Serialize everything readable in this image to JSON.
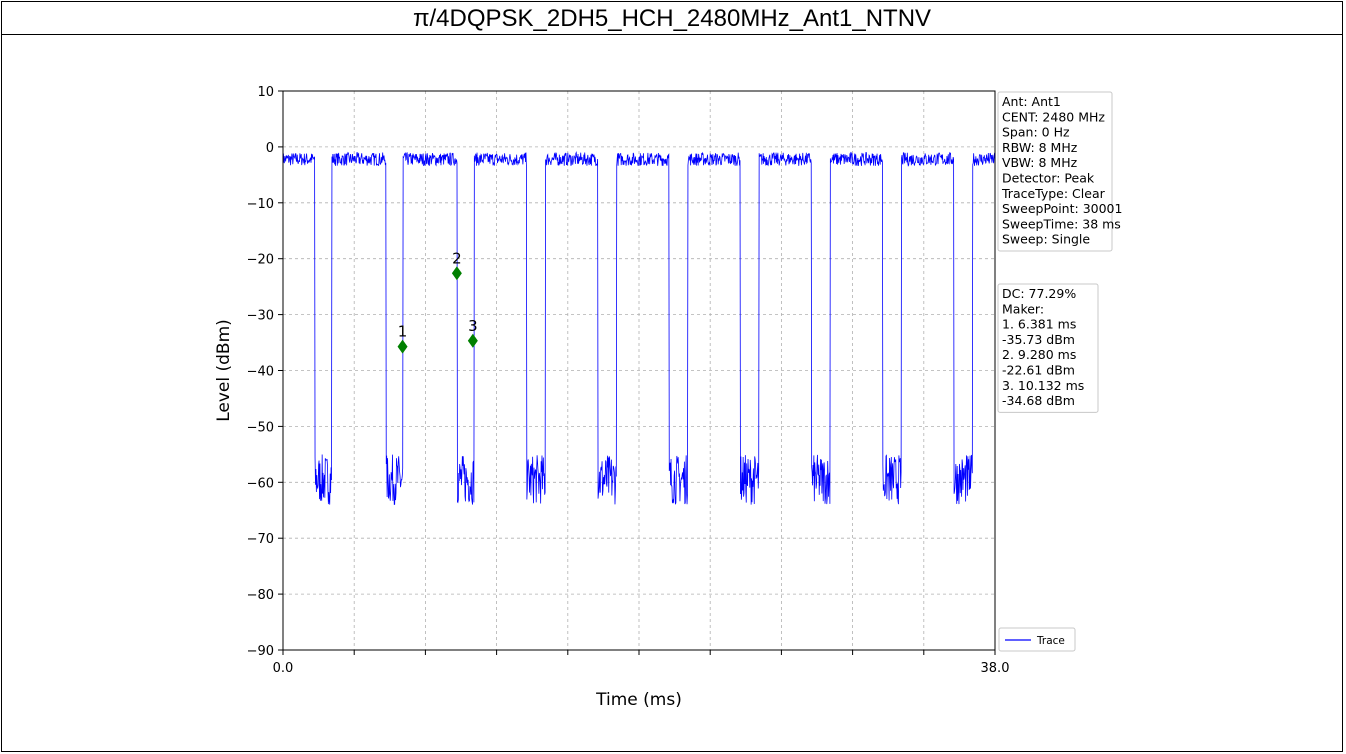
{
  "page": {
    "title": "π/4DQPSK_2DH5_HCH_2480MHz_Ant1_NTNV"
  },
  "chart_data": {
    "type": "line",
    "title": "",
    "xlabel": "Time (ms)",
    "ylabel": "Level (dBm)",
    "xlim": [
      0.0,
      38.0
    ],
    "ylim": [
      -90,
      10
    ],
    "x_tick_labels": [
      "0.0",
      "38.0"
    ],
    "x_minor_ticks": [
      3.8,
      7.6,
      11.4,
      15.2,
      19.0,
      22.8,
      26.6,
      30.4,
      34.2
    ],
    "y_ticks": [
      10,
      0,
      -10,
      -20,
      -30,
      -40,
      -50,
      -60,
      -70,
      -80,
      -90
    ],
    "y_tick_labels": [
      "10",
      "0",
      "−10",
      "−20",
      "−30",
      "−40",
      "−50",
      "−60",
      "−70",
      "−80",
      "−90"
    ],
    "grid": true,
    "legend_position": "bottom-right",
    "series": [
      {
        "name": "Trace",
        "color": "#0000ff",
        "pattern": {
          "high_level_dBm": -2.2,
          "low_level_dBm": -59.5,
          "high_segments_ms": [
            [
              0.0,
              1.7
            ],
            [
              2.6,
              5.5
            ],
            [
              6.4,
              9.3
            ],
            [
              10.2,
              13.0
            ],
            [
              14.0,
              16.8
            ],
            [
              17.8,
              20.6
            ],
            [
              21.6,
              24.4
            ],
            [
              25.4,
              28.2
            ],
            [
              29.2,
              32.0
            ],
            [
              33.0,
              35.8
            ],
            [
              36.8,
              38.0
            ]
          ]
        }
      }
    ],
    "markers": [
      {
        "label": "1",
        "x": 6.381,
        "y": -35.73
      },
      {
        "label": "2",
        "x": 9.28,
        "y": -22.61
      },
      {
        "label": "3",
        "x": 10.132,
        "y": -34.68
      }
    ],
    "info_box": [
      "Ant: Ant1",
      "CENT: 2480 MHz",
      "Span: 0 Hz",
      "RBW: 8 MHz",
      "VBW: 8 MHz",
      "Detector: Peak",
      "TraceType: Clear",
      "SweepPoint: 30001",
      "SweepTime: 38 ms",
      "Sweep: Single"
    ],
    "marker_box": [
      "DC: 77.29%",
      "Maker:",
      "1. 6.381 ms",
      "    -35.73 dBm",
      "2. 9.280 ms",
      "    -22.61 dBm",
      "3. 10.132 ms",
      "    -34.68 dBm"
    ],
    "colors": {
      "trace": "#0000ff",
      "marker": "#008000",
      "grid": "#b0b0b0"
    }
  }
}
